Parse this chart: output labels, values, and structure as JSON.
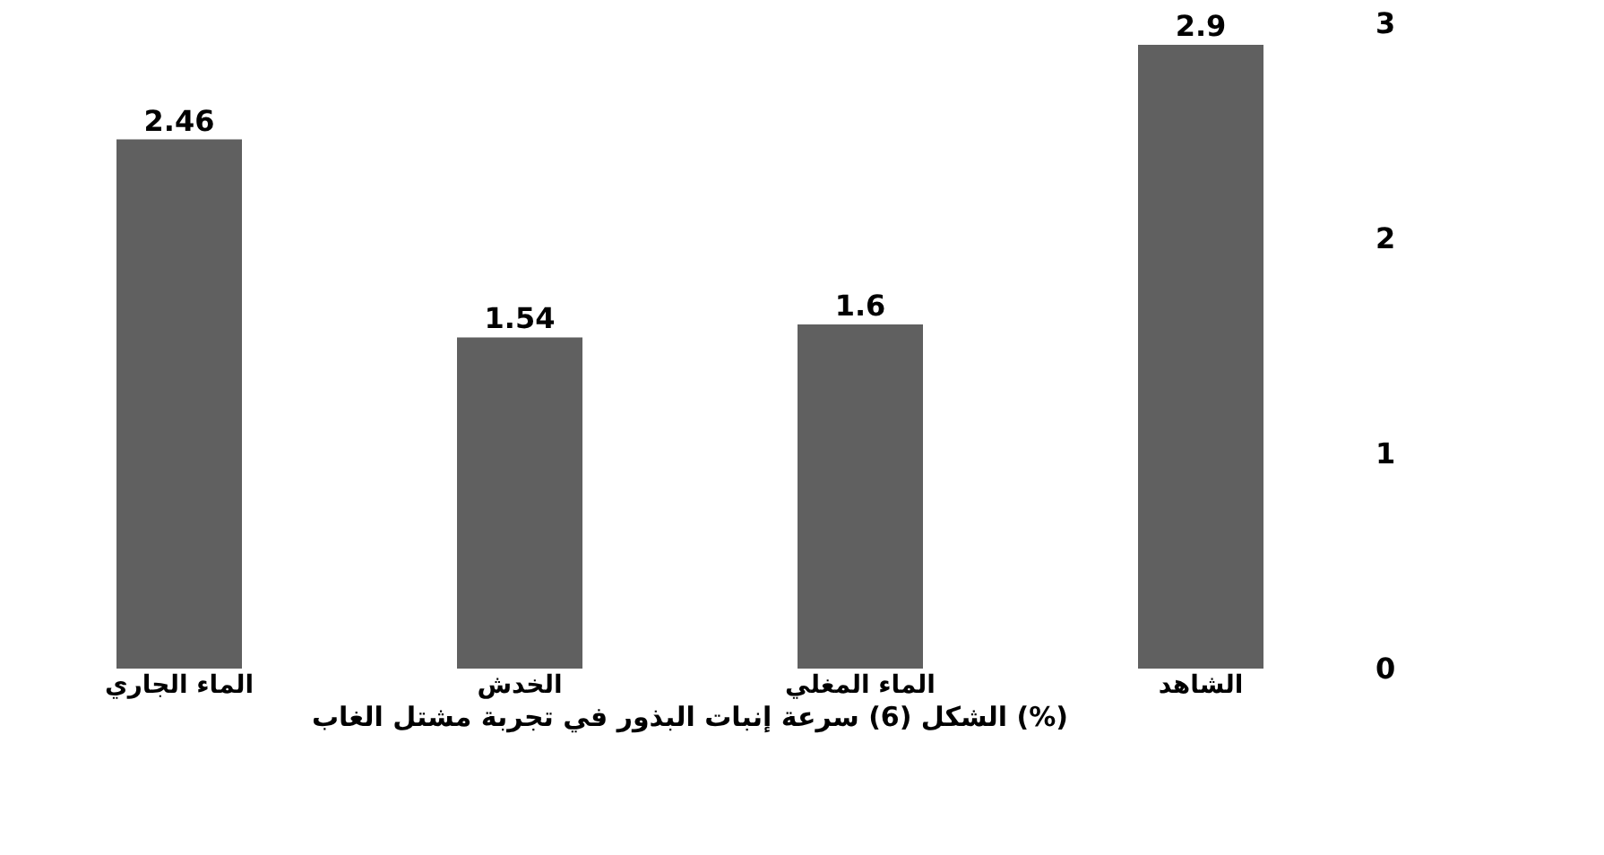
{
  "chart_data": {
    "type": "bar",
    "categories": [
      "الماء الجاري",
      "الخدش",
      "الماء المغلي",
      "الشاهد"
    ],
    "values": [
      2.46,
      1.54,
      1.6,
      2.9
    ],
    "color": "#606060",
    "ylim": [
      0,
      3
    ],
    "yticks": [
      0,
      1,
      2,
      3
    ],
    "data_labels": true,
    "annotations": [
      "الشكل (6) سرعة إنبات البذور في تجربة مشتل الغاب (%)"
    ]
  }
}
